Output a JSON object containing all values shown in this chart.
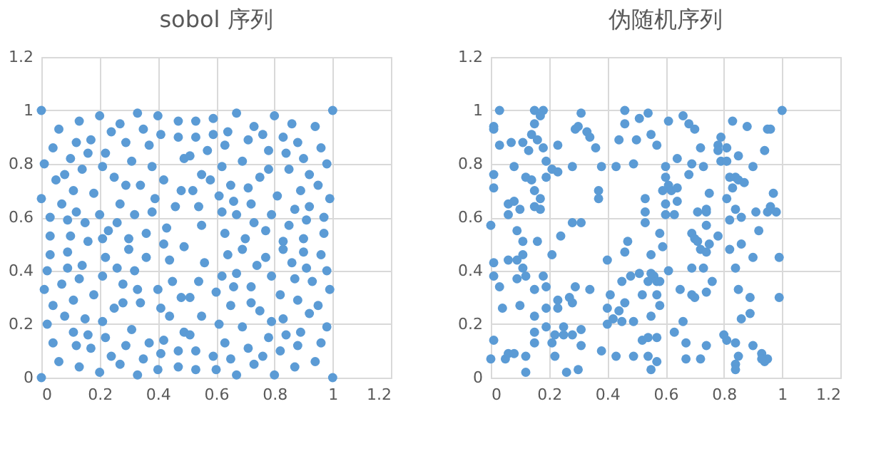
{
  "chart_data": [
    {
      "type": "scatter",
      "title": "sobol  序列",
      "xlim": [
        0,
        1.2
      ],
      "xticks": [
        0,
        0.2,
        0.4,
        0.6,
        0.8,
        1,
        1.2
      ],
      "ylim": [
        0,
        1.2
      ],
      "yticks": [
        0,
        0.2,
        0.4,
        0.6,
        0.8,
        1,
        1.2
      ],
      "grid": true,
      "marker": "circle",
      "series": [
        {
          "color": "#5b9bd5",
          "x": [
            0,
            0,
            0.01,
            0.06,
            0.04,
            0.05,
            0.0,
            0.03,
            0.03,
            0.03,
            0.02,
            0.01,
            0.04,
            0.02,
            0.04,
            0.06,
            0.13,
            0.12,
            0.1,
            0.08,
            0.11,
            0.07,
            0.12,
            0.09,
            0.15,
            0.1,
            0.16,
            0.09,
            0.09,
            0.14,
            0.07,
            0.13,
            0.11,
            0.08,
            0.15,
            0.11,
            0.16,
            0.12,
            0.17,
            0.13,
            0.2,
            0.17,
            0.16,
            0.22,
            0.14,
            0.21,
            0.18,
            0.2,
            0.23,
            0.21,
            0.22,
            0.21,
            0.18,
            0.25,
            0.21,
            0.22,
            0.24,
            0.2,
            0.24,
            0.27,
            0.29,
            0.25,
            0.29,
            0.27,
            0.26,
            0.3,
            0.3,
            0.26,
            0.28,
            0.28,
            0.31,
            0.29,
            0.27,
            0.33,
            0.35,
            0.31,
            0.34,
            0.32,
            0.36,
            0.36,
            0.32,
            0.33,
            0.34,
            0.37,
            0.35,
            0.33,
            0.4,
            0.41,
            0.37,
            0.38,
            0.42,
            0.39,
            0.38,
            0.42,
            0.43,
            0.44,
            0.4,
            0.41,
            0.44,
            0.42,
            0.41,
            0.4,
            0.47,
            0.47,
            0.49,
            0.48,
            0.46,
            0.49,
            0.45,
            0.48,
            0.49,
            0.51,
            0.47,
            0.47,
            0.53,
            0.53,
            0.51,
            0.55,
            0.52,
            0.54,
            0.55,
            0.56,
            0.54,
            0.51,
            0.55,
            0.53,
            0.53,
            0.57,
            0.59,
            0.67,
            0.59,
            0.64,
            0.63,
            0.73,
            0.76,
            0.71,
            0.62,
            0.69,
            0.78,
            0.58,
            0.65,
            0.71,
            0.75,
            0.78,
            0.61,
            0.66,
            0.72,
            0.62,
            0.67,
            0.79,
            0.73,
            0.77,
            0.63,
            0.7,
            0.69,
            0.64,
            0.77,
            0.74,
            0.62,
            0.67,
            0.79,
            0.66,
            0.72,
            0.6,
            0.65,
            0.72,
            0.75,
            0.61,
            0.69,
            0.79,
            0.63,
            0.71,
            0.78,
            0.59,
            0.65,
            0.73,
            0.76,
            0.6,
            0.67,
            0.8,
            0.86,
            0.94,
            1,
            0.83,
            0.88,
            0.84,
            0.9,
            0.96,
            0.85,
            0.92,
            0.98,
            0.95,
            0.89,
            0.81,
            0.99,
            0.92,
            0.87,
            0.97,
            0.91,
            0.85,
            0.97,
            0.9,
            0.83,
            0.83,
            0.9,
            0.96,
            0.86,
            0.91,
            0.98,
            0.87,
            0.93,
            0.99,
            0.82,
            0.88,
            0.95,
            0.92,
            0.83,
            0.98,
            0.89,
            0.84,
            0.96,
            0.88,
            0.82,
            0.94,
            0.87,
            0.8,
            1
          ],
          "values": [
            1,
            0,
            0.8,
            0.93,
            0.86,
            0.74,
            0.67,
            0.6,
            0.53,
            0.46,
            0.4,
            0.33,
            0.27,
            0.2,
            0.13,
            0.06,
            0.96,
            0.88,
            0.82,
            0.76,
            0.7,
            0.65,
            0.62,
            0.59,
            0.58,
            0.53,
            0.51,
            0.47,
            0.41,
            0.42,
            0.35,
            0.37,
            0.29,
            0.23,
            0.22,
            0.17,
            0.16,
            0.12,
            0.11,
            0.04,
            0.98,
            0.89,
            0.84,
            0.84,
            0.78,
            0.79,
            0.69,
            0.61,
            0.55,
            0.52,
            0.45,
            0.38,
            0.31,
            0.26,
            0.21,
            0.15,
            0.08,
            0.02,
            0.92,
            0.95,
            0.88,
            0.75,
            0.72,
            0.65,
            0.58,
            0.52,
            0.48,
            0.41,
            0.35,
            0.28,
            0.18,
            0.12,
            0.05,
            0.99,
            0.93,
            0.81,
            0.72,
            0.61,
            0.54,
            0.45,
            0.4,
            0.33,
            0.28,
            0.13,
            0.07,
            0.01,
            0.98,
            0.91,
            0.87,
            0.79,
            0.74,
            0.67,
            0.62,
            0.5,
            0.56,
            0.44,
            0.33,
            0.26,
            0.23,
            0.14,
            0.09,
            0.03,
            0.96,
            0.9,
            0.82,
            0.7,
            0.64,
            0.49,
            0.36,
            0.3,
            0.17,
            0.16,
            0.1,
            0.04,
            0.96,
            0.9,
            0.83,
            0.76,
            0.7,
            0.64,
            0.57,
            0.43,
            0.36,
            0.3,
            0.23,
            0.1,
            0.03,
            0.85,
            0.97,
            0.99,
            0.91,
            0.92,
            0.87,
            0.94,
            0.91,
            0.89,
            0.79,
            0.81,
            0.85,
            0.74,
            0.72,
            0.71,
            0.75,
            0.78,
            0.68,
            0.66,
            0.65,
            0.62,
            0.61,
            0.61,
            0.58,
            0.55,
            0.54,
            0.52,
            0.48,
            0.46,
            0.45,
            0.42,
            0.38,
            0.39,
            0.38,
            0.34,
            0.34,
            0.32,
            0.27,
            0.28,
            0.25,
            0.2,
            0.19,
            0.21,
            0.13,
            0.11,
            0.15,
            0.08,
            0.07,
            0.05,
            0.08,
            0.03,
            0.01,
            0.98,
            0.95,
            0.94,
            1,
            0.9,
            0.88,
            0.84,
            0.82,
            0.86,
            0.78,
            0.76,
            0.8,
            0.72,
            0.7,
            0.68,
            0.67,
            0.64,
            0.63,
            0.6,
            0.59,
            0.57,
            0.54,
            0.52,
            0.51,
            0.48,
            0.47,
            0.46,
            0.43,
            0.41,
            0.4,
            0.37,
            0.36,
            0.33,
            0.31,
            0.29,
            0.27,
            0.24,
            0.22,
            0.19,
            0.17,
            0.16,
            0.13,
            0.12,
            0.1,
            0.06,
            0.04,
            0.01,
            0
          ]
        }
      ]
    },
    {
      "type": "scatter",
      "title": "伪随机序列",
      "xlim": [
        0,
        1.2
      ],
      "xticks": [
        0,
        0.2,
        0.4,
        0.6,
        0.8,
        1,
        1.2
      ],
      "ylim": [
        0,
        1.2
      ],
      "yticks": [
        0,
        0.2,
        0.4,
        0.6,
        0.8,
        1,
        1.2
      ],
      "grid": true,
      "marker": "circle",
      "series": [
        {
          "color": "#5b9bd5",
          "x": [
            0.03,
            0.01,
            0.01,
            0.03,
            0.07,
            0.11,
            0.15,
            0.18,
            0.17,
            0.15,
            0.14,
            0.16,
            0.13,
            0.18,
            0.23,
            0.19,
            0.21,
            0.23,
            0.19,
            0.14,
            0.12,
            0.08,
            0.01,
            0.01,
            0.06,
            0.08,
            0.06,
            0.1,
            0.15,
            0.15,
            0.17,
            0.17,
            0,
            0.09,
            0.11,
            0.16,
            0.06,
            0.11,
            0.09,
            0.11,
            0.09,
            0.12,
            0.01,
            0.01,
            0.03,
            0.18,
            0.15,
            0.19,
            0.21,
            0.24,
            0.28,
            0.31,
            0.04,
            0.1,
            0.15,
            0.19,
            0.23,
            0.23,
            0.27,
            0.28,
            0.29,
            0.34,
            0.19,
            0.25,
            0.31,
            0.15,
            0.15,
            0.21,
            0.22,
            0.25,
            0.28,
            0.31,
            0.01,
            0,
            0.05,
            0.06,
            0.08,
            0.12,
            0.22,
            0.12,
            0.26,
            0.3,
            0.38,
            0.29,
            0.31,
            0.3,
            0.33,
            0.34,
            0.36,
            0.28,
            0.38,
            0.37,
            0.37,
            0.4,
            0.41,
            0.4,
            0.42,
            0.43,
            0.4,
            0.43,
            0.44,
            0.46,
            0.46,
            0.5,
            0.51,
            0.49,
            0.46,
            0.47,
            0.48,
            0.51,
            0.45,
            0.46,
            0.44,
            0.45,
            0.49,
            0.49,
            0.52,
            0.52,
            0.53,
            0.53,
            0.54,
            0.61,
            0.66,
            0.68,
            0.7,
            0.55,
            0.57,
            0.64,
            0.69,
            0.73,
            0.72,
            0.6,
            0.68,
            0.6,
            0.61,
            0.62,
            0.59,
            0.64,
            0.64,
            0.6,
            0.6,
            0.63,
            0.53,
            0.58,
            0.59,
            0.55,
            0.55,
            0.56,
            0.54,
            0.57,
            0.58,
            0.61,
            0.57,
            0.58,
            0.55,
            0.54,
            0.57,
            0.54,
            0.57,
            0.55,
            0.63,
            0.66,
            0.67,
            0.67,
            0.65,
            0.69,
            0.7,
            0.69,
            0.73,
            0.76,
            0.74,
            0.72,
            0.74,
            0.69,
            0.7,
            0.71,
            0.72,
            0.74,
            0.75,
            0.74,
            0.71,
            0.74,
            0.74,
            0.75,
            0.78,
            0.79,
            0.78,
            0.78,
            0.81,
            0.79,
            0.81,
            0.85,
            0.83,
            0.88,
            0.95,
            0.96,
            0.94,
            0.9,
            0.82,
            0.84,
            0.83,
            0.85,
            0.87,
            0.81,
            0.84,
            0.86,
            0.82,
            0.91,
            0.95,
            0.96,
            0.97,
            0.98,
            0.92,
            0.82,
            0.86,
            0.9,
            0.99,
            0.84,
            0.85,
            0.89,
            0.99,
            0.89,
            0.86,
            0.8,
            0.81,
            0.84,
            0.9,
            0.93,
            0.95,
            0.94,
            0.93,
            0.85,
            0.84,
            0.84,
            1
          ],
          "values": [
            1,
            0.94,
            0.93,
            0.87,
            0.88,
            0.88,
            1,
            1,
            0.98,
            0.95,
            0.91,
            0.89,
            0.85,
            0.86,
            0.87,
            0.81,
            0.78,
            0.77,
            0.75,
            0.74,
            0.75,
            0.79,
            0.76,
            0.71,
            0.65,
            0.66,
            0.61,
            0.63,
            0.64,
            0.7,
            0.67,
            0.63,
            0.57,
            0.55,
            0.51,
            0.51,
            0.44,
            0.46,
            0.44,
            0.41,
            0.37,
            0.38,
            0.43,
            0.38,
            0.34,
            0.38,
            0.33,
            0.34,
            0.46,
            0.53,
            0.58,
            0.58,
            0.26,
            0.27,
            0.23,
            0.26,
            0.29,
            0.26,
            0.3,
            0.28,
            0.34,
            0.33,
            0.19,
            0.19,
            0.18,
            0.17,
            0.13,
            0.13,
            0.16,
            0.16,
            0.16,
            0.12,
            0.14,
            0.07,
            0.07,
            0.09,
            0.09,
            0.08,
            0.08,
            0.02,
            0.02,
            0.03,
            0.1,
            0.93,
            0.99,
            0.94,
            0.92,
            0.9,
            0.86,
            0.79,
            0.79,
            0.7,
            0.67,
            0.44,
            0.31,
            0.26,
            0.22,
            0.08,
            0.2,
            0.79,
            0.89,
            1,
            0.95,
            0.89,
            0.97,
            0.8,
            0.47,
            0.51,
            0.38,
            0.39,
            0.36,
            0.28,
            0.25,
            0.21,
            0.21,
            0.08,
            0.14,
            0.31,
            0.67,
            0.62,
            0.99,
            0.96,
            0.98,
            0.95,
            0.93,
            0.91,
            0.87,
            0.82,
            0.8,
            0.79,
            0.86,
            0.79,
            0.76,
            0.75,
            0.72,
            0.7,
            0.7,
            0.71,
            0.66,
            0.65,
            0.61,
            0.61,
            0.58,
            0.54,
            0.49,
            0.46,
            0.39,
            0.38,
            0.36,
            0.36,
            0.36,
            0.4,
            0.31,
            0.27,
            0.23,
            0.15,
            0.15,
            0.08,
            0.06,
            0.03,
            0.17,
            0.21,
            0.13,
            0.07,
            0.33,
            0.31,
            0.3,
            0.41,
            0.41,
            0.36,
            0.32,
            0.07,
            0.12,
            0.54,
            0.52,
            0.51,
            0.48,
            0.47,
            0.5,
            0.57,
            0.62,
            0.62,
            0.63,
            0.69,
            0.53,
            0.9,
            0.87,
            0.85,
            0.86,
            0.81,
            0.81,
            0.83,
            0.96,
            0.94,
            0.93,
            0.93,
            0.85,
            0.79,
            0.75,
            0.75,
            0.71,
            0.74,
            0.73,
            0.67,
            0.63,
            0.6,
            0.59,
            0.62,
            0.62,
            0.64,
            0.69,
            0.62,
            0.55,
            0.48,
            0.5,
            0.45,
            0.45,
            0.41,
            0.33,
            0.3,
            0.3,
            0.24,
            0.22,
            0.16,
            0.14,
            0.13,
            0.12,
            0.09,
            0.07,
            0.06,
            0.07,
            0.08,
            0.05,
            0.03,
            1
          ]
        }
      ]
    }
  ]
}
